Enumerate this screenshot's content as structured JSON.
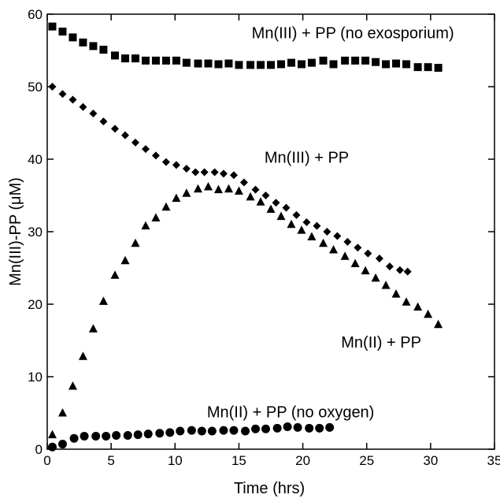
{
  "chart_data": {
    "type": "scatter",
    "xlabel": "Time (hrs)",
    "ylabel": "Mn(III)-PP (μM)",
    "xlim": [
      0,
      35
    ],
    "ylim": [
      0,
      60
    ],
    "x_ticks": [
      0,
      5,
      10,
      15,
      20,
      25,
      30,
      35
    ],
    "y_ticks": [
      0,
      10,
      20,
      30,
      40,
      50,
      60
    ],
    "grid": false,
    "series": [
      {
        "name": "Mn(III) + PP (no exosporium)",
        "marker": "square",
        "color": "#000000",
        "points": [
          [
            0.4,
            58.3
          ],
          [
            1.2,
            57.6
          ],
          [
            2.0,
            56.8
          ],
          [
            2.8,
            56.1
          ],
          [
            3.6,
            55.6
          ],
          [
            4.4,
            55.1
          ],
          [
            5.3,
            54.3
          ],
          [
            6.1,
            53.9
          ],
          [
            6.9,
            53.9
          ],
          [
            7.7,
            53.6
          ],
          [
            8.5,
            53.6
          ],
          [
            9.3,
            53.6
          ],
          [
            10.1,
            53.6
          ],
          [
            10.9,
            53.3
          ],
          [
            11.8,
            53.2
          ],
          [
            12.6,
            53.2
          ],
          [
            13.4,
            53.1
          ],
          [
            14.2,
            53.2
          ],
          [
            15.0,
            53.0
          ],
          [
            15.9,
            53.0
          ],
          [
            16.7,
            53.0
          ],
          [
            17.5,
            53.0
          ],
          [
            18.3,
            53.1
          ],
          [
            19.1,
            53.3
          ],
          [
            19.9,
            53.1
          ],
          [
            20.7,
            53.3
          ],
          [
            21.6,
            53.6
          ],
          [
            22.4,
            53.1
          ],
          [
            23.3,
            53.6
          ],
          [
            24.1,
            53.6
          ],
          [
            24.9,
            53.6
          ],
          [
            25.7,
            53.4
          ],
          [
            26.5,
            53.1
          ],
          [
            27.3,
            53.2
          ],
          [
            28.1,
            53.1
          ],
          [
            29.0,
            52.7
          ],
          [
            29.8,
            52.7
          ],
          [
            30.6,
            52.6
          ]
        ]
      },
      {
        "name": "Mn(III) + PP",
        "marker": "diamond",
        "color": "#000000",
        "points": [
          [
            0.4,
            50.0
          ],
          [
            1.2,
            49.0
          ],
          [
            2.0,
            48.2
          ],
          [
            2.8,
            47.2
          ],
          [
            3.6,
            46.3
          ],
          [
            4.4,
            45.2
          ],
          [
            5.3,
            44.2
          ],
          [
            6.1,
            43.3
          ],
          [
            6.9,
            42.3
          ],
          [
            7.7,
            41.4
          ],
          [
            8.5,
            40.5
          ],
          [
            9.3,
            39.6
          ],
          [
            10.1,
            39.2
          ],
          [
            10.9,
            38.7
          ],
          [
            11.6,
            38.2
          ],
          [
            12.3,
            38.2
          ],
          [
            13.1,
            38.2
          ],
          [
            13.8,
            38.0
          ],
          [
            14.6,
            37.8
          ],
          [
            15.4,
            36.8
          ],
          [
            16.3,
            35.8
          ],
          [
            17.1,
            35.0
          ],
          [
            17.9,
            34.0
          ],
          [
            18.7,
            33.3
          ],
          [
            19.5,
            32.3
          ],
          [
            20.3,
            31.3
          ],
          [
            21.1,
            30.8
          ],
          [
            21.9,
            30.0
          ],
          [
            22.7,
            29.4
          ],
          [
            23.5,
            28.6
          ],
          [
            24.3,
            27.8
          ],
          [
            25.1,
            27.0
          ],
          [
            26.0,
            26.3
          ],
          [
            26.8,
            25.2
          ],
          [
            27.6,
            24.7
          ],
          [
            28.2,
            24.5
          ]
        ]
      },
      {
        "name": "Mn(II) + PP",
        "marker": "triangle",
        "color": "#000000",
        "points": [
          [
            0.4,
            2.0
          ],
          [
            1.2,
            5.0
          ],
          [
            2.0,
            8.7
          ],
          [
            2.8,
            12.8
          ],
          [
            3.6,
            16.6
          ],
          [
            4.4,
            20.4
          ],
          [
            5.3,
            24.0
          ],
          [
            6.1,
            26.0
          ],
          [
            6.9,
            28.4
          ],
          [
            7.7,
            30.8
          ],
          [
            8.5,
            31.9
          ],
          [
            9.3,
            33.4
          ],
          [
            10.1,
            34.6
          ],
          [
            10.9,
            35.3
          ],
          [
            11.8,
            35.9
          ],
          [
            12.6,
            36.2
          ],
          [
            13.4,
            35.8
          ],
          [
            14.2,
            35.9
          ],
          [
            15.0,
            35.6
          ],
          [
            15.9,
            34.8
          ],
          [
            16.7,
            34.1
          ],
          [
            17.5,
            33.1
          ],
          [
            18.3,
            32.1
          ],
          [
            19.1,
            31.0
          ],
          [
            19.9,
            30.2
          ],
          [
            20.7,
            29.3
          ],
          [
            21.6,
            28.4
          ],
          [
            22.4,
            27.5
          ],
          [
            23.3,
            26.6
          ],
          [
            24.1,
            25.6
          ],
          [
            24.9,
            24.6
          ],
          [
            25.7,
            23.6
          ],
          [
            26.5,
            22.6
          ],
          [
            27.3,
            21.4
          ],
          [
            28.1,
            20.3
          ],
          [
            29.0,
            19.6
          ],
          [
            29.8,
            18.6
          ],
          [
            30.6,
            17.2
          ]
        ]
      },
      {
        "name": "Mn(II) + PP (no oxygen)",
        "marker": "circle",
        "color": "#000000",
        "points": [
          [
            0.4,
            0.3
          ],
          [
            1.2,
            0.7
          ],
          [
            2.1,
            1.5
          ],
          [
            2.9,
            1.8
          ],
          [
            3.8,
            1.8
          ],
          [
            4.6,
            1.8
          ],
          [
            5.4,
            1.9
          ],
          [
            6.3,
            1.9
          ],
          [
            7.1,
            2.0
          ],
          [
            7.9,
            2.1
          ],
          [
            8.8,
            2.2
          ],
          [
            9.6,
            2.3
          ],
          [
            10.4,
            2.5
          ],
          [
            11.3,
            2.6
          ],
          [
            12.1,
            2.5
          ],
          [
            12.9,
            2.5
          ],
          [
            13.8,
            2.6
          ],
          [
            14.6,
            2.6
          ],
          [
            15.5,
            2.5
          ],
          [
            16.3,
            2.8
          ],
          [
            17.1,
            2.8
          ],
          [
            18.0,
            2.9
          ],
          [
            18.8,
            3.1
          ],
          [
            19.6,
            3.0
          ],
          [
            20.5,
            2.9
          ],
          [
            21.3,
            2.9
          ],
          [
            22.1,
            3.0
          ]
        ]
      }
    ],
    "annotations": [
      {
        "text": "Mn(III) + PP (no exosporium)",
        "x": 16.0,
        "y": 56.7
      },
      {
        "text": "Mn(III) + PP",
        "x": 17.0,
        "y": 39.5
      },
      {
        "text": "Mn(II) + PP",
        "x": 23.0,
        "y": 14.0
      },
      {
        "text": "Mn(II) + PP (no oxygen)",
        "x": 12.5,
        "y": 4.4
      }
    ]
  }
}
